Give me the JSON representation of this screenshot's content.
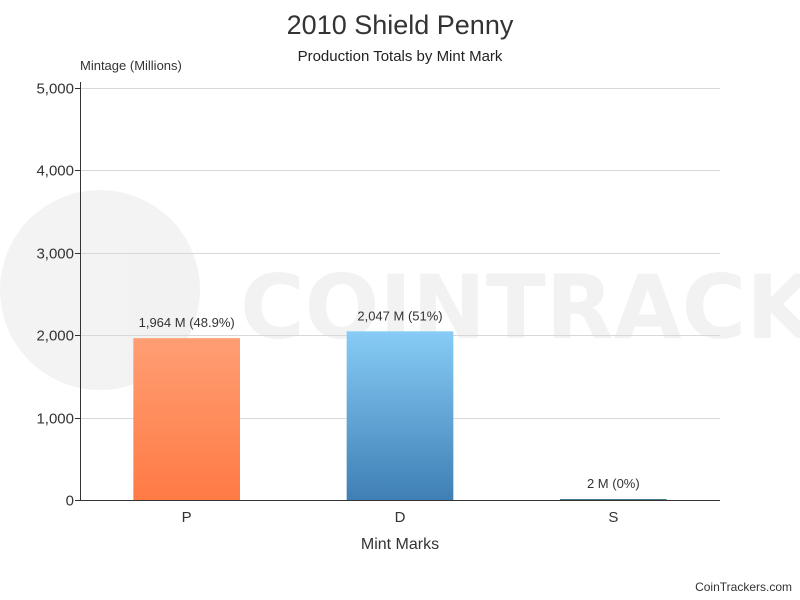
{
  "chart_data": {
    "type": "bar",
    "title": "2010 Shield Penny",
    "subtitle": "Production Totals by Mint Mark",
    "ylabel": "Mintage (Millions)",
    "xlabel": "Mint Marks",
    "categories": [
      "P",
      "D",
      "S"
    ],
    "values": [
      1964,
      2047,
      2
    ],
    "data_labels": [
      "1,964 M (48.9%)",
      "2,047 M (51%)",
      "2 M (0%)"
    ],
    "bar_colors": [
      {
        "top": "#ff9e73",
        "bottom": "#ff7a45"
      },
      {
        "top": "#87ccf6",
        "bottom": "#3f7fb5"
      },
      {
        "top": "#4a8a9a",
        "bottom": "#3b7080"
      }
    ],
    "ylim": [
      0,
      5000
    ],
    "yticks": [
      0,
      1000,
      2000,
      3000,
      4000,
      5000
    ],
    "ytick_labels": [
      "0",
      "1,000",
      "2,000",
      "3,000",
      "4,000",
      "5,000"
    ],
    "grid": true,
    "watermark": "COINTRACKERS"
  },
  "credit": "CoinTrackers.com"
}
